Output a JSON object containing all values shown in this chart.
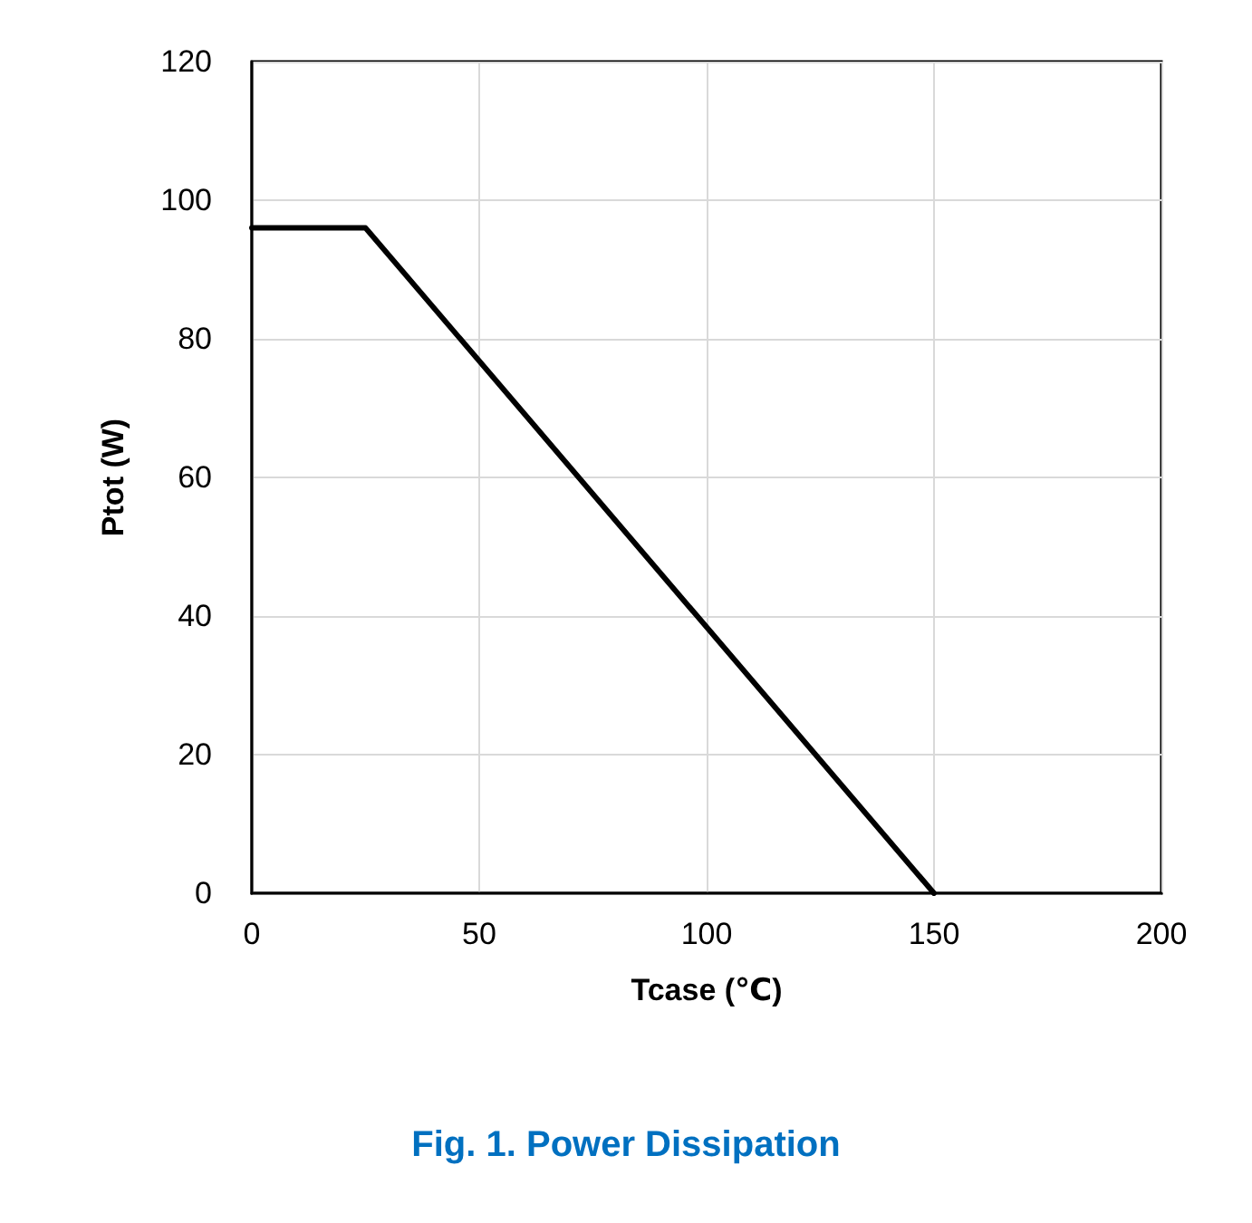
{
  "chart_data": {
    "type": "line",
    "title": "Fig. 1. Power Dissipation",
    "xlabel": "Tcase (℃)",
    "ylabel": "Ptot (W)",
    "x": [
      0,
      25,
      150
    ],
    "series": [
      {
        "color": "#000000",
        "values": [
          96,
          96,
          0
        ]
      }
    ],
    "xlim": [
      0,
      200
    ],
    "xticks": [
      0,
      50,
      100,
      150,
      200
    ],
    "ylim": [
      0,
      120
    ],
    "yticks": [
      0,
      20,
      40,
      60,
      80,
      100,
      120
    ],
    "grid": true,
    "marker": "none",
    "line_style": "solid"
  }
}
